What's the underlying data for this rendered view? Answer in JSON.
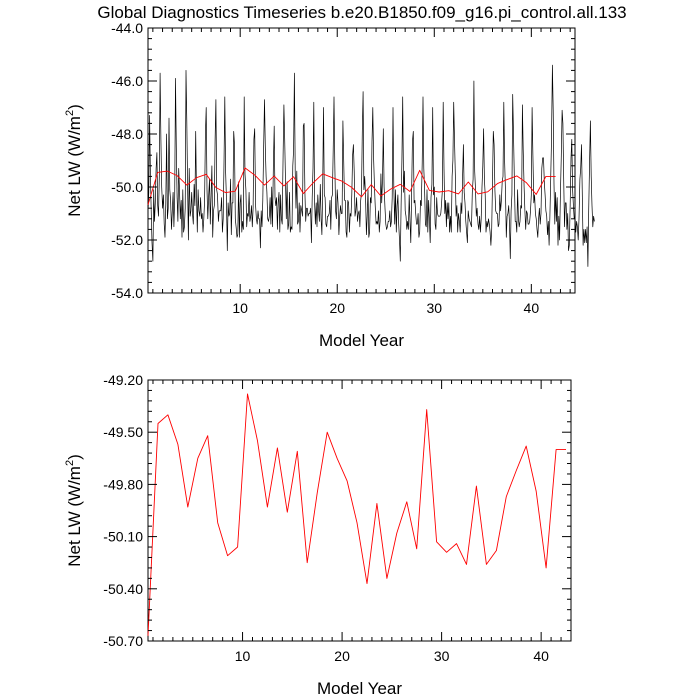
{
  "title": "Global Diagnostics Timeseries b.e20.B1850.f09_g16.pi_control.all.133",
  "colors": {
    "monthly": "#000000",
    "annual": "#ff0000",
    "frame": "#000000",
    "background": "#ffffff"
  },
  "chart_data": [
    {
      "type": "line",
      "title": "Global Diagnostics Timeseries b.e20.B1850.f09_g16.pi_control.all.133",
      "xlabel": "Model Year",
      "ylabel": "Net LW (W/m²)",
      "ylabel_main": "Net LW (W/m",
      "ylabel_sup": "2",
      "ylabel_close": ")",
      "xlim": [
        0.5,
        44.5
      ],
      "ylim": [
        -54.0,
        -44.0
      ],
      "xticks": [
        10,
        20,
        30,
        40
      ],
      "xtick_labels": [
        "10",
        "20",
        "30",
        "40"
      ],
      "yticks": [
        -54,
        -52,
        -50,
        -48,
        -46,
        -44
      ],
      "ytick_labels": [
        "-54.0",
        "-52.0",
        "-50.0",
        "-48.0",
        "-46.0",
        "-44.0"
      ],
      "grid": false,
      "series": [
        {
          "color": "#000000",
          "x_start": 0.5,
          "x_step": 0.08333333,
          "values": [
            -51.0,
            -50.2,
            -47.3,
            -49.5,
            -50.9,
            -52.1,
            -52.8,
            -50.1,
            -51.3,
            -50.6,
            -49.3,
            -48.7,
            -50.7,
            -51.1,
            -49.6,
            -45.7,
            -48.2,
            -50.0,
            -50.8,
            -50.3,
            -51.4,
            -51.9,
            -50.6,
            -48.0,
            -51.2,
            -50.8,
            -47.4,
            -50.1,
            -50.5,
            -51.6,
            -50.9,
            -50.2,
            -51.5,
            -50.4,
            -45.9,
            -48.5,
            -50.4,
            -51.3,
            -49.3,
            -50.1,
            -51.2,
            -50.5,
            -51.9,
            -50.1,
            -51.7,
            -51.5,
            -50.8,
            -45.6,
            -47.5,
            -50.0,
            -52.0,
            -49.3,
            -51.1,
            -50.9,
            -50.2,
            -51.0,
            -51.4,
            -49.9,
            -50.7,
            -47.9,
            -50.3,
            -51.7,
            -50.1,
            -50.9,
            -51.1,
            -50.4,
            -51.2,
            -51.0,
            -51.7,
            -51.2,
            -50.5,
            -48.0,
            -47.0,
            -50.1,
            -51.2,
            -50.3,
            -49.7,
            -51.4,
            -50.3,
            -49.2,
            -51.9,
            -50.9,
            -50.7,
            -48.2,
            -46.7,
            -50.1,
            -50.3,
            -51.3,
            -50.9,
            -50.9,
            -50.9,
            -50.4,
            -51.7,
            -51.2,
            -49.1,
            -46.6,
            -49.4,
            -50.4,
            -52.4,
            -50.6,
            -51.1,
            -51.0,
            -49.7,
            -51.8,
            -50.6,
            -50.6,
            -47.9,
            -48.4,
            -51.2,
            -51.5,
            -51.9,
            -51.8,
            -49.8,
            -51.9,
            -50.6,
            -50.3,
            -51.7,
            -51.3,
            -51.6,
            -46.6,
            -49.5,
            -50.1,
            -51.5,
            -51.0,
            -51.1,
            -50.2,
            -51.3,
            -51.1,
            -50.7,
            -51.5,
            -50.8,
            -48.2,
            -47.8,
            -50.7,
            -51.2,
            -51.4,
            -50.9,
            -51.2,
            -51.2,
            -52.3,
            -50.9,
            -51.5,
            -50.5,
            -48.6,
            -46.7,
            -48.5,
            -49.6,
            -50.2,
            -51.2,
            -51.3,
            -51.1,
            -50.4,
            -51.4,
            -50.0,
            -51.5,
            -49.1,
            -47.7,
            -50.4,
            -50.7,
            -50.4,
            -51.6,
            -50.6,
            -50.2,
            -51.7,
            -50.3,
            -51.2,
            -51.4,
            -48.8,
            -46.9,
            -48.2,
            -49.8,
            -51.2,
            -49.8,
            -51.6,
            -51.4,
            -50.2,
            -51.7,
            -51.5,
            -51.6,
            -49.2,
            -48.6,
            -45.7,
            -49.4,
            -50.8,
            -49.4,
            -51.4,
            -51.3,
            -50.6,
            -51.7,
            -50.7,
            -50.9,
            -51.1,
            -47.7,
            -47.6,
            -50.2,
            -51.3,
            -50.8,
            -50.8,
            -51.1,
            -51.0,
            -51.0,
            -50.8,
            -52.1,
            -50.4,
            -49.3,
            -46.8,
            -50.6,
            -51.4,
            -50.6,
            -51.5,
            -50.3,
            -50.9,
            -51.3,
            -49.9,
            -51.2,
            -51.8,
            -50.0,
            -47.0,
            -50.3,
            -50.4,
            -51.4,
            -51.5,
            -51.1,
            -51.1,
            -51.0,
            -50.5,
            -51.6,
            -50.4,
            -50.3,
            -48.6,
            -46.6,
            -49.1,
            -50.9,
            -51.2,
            -50.1,
            -50.6,
            -51.8,
            -51.1,
            -50.7,
            -51.0,
            -51.0,
            -47.5,
            -49.0,
            -50.5,
            -50.5,
            -51.7,
            -51.9,
            -50.5,
            -50.6,
            -51.7,
            -51.0,
            -51.1,
            -50.3,
            -48.8,
            -48.4,
            -49.4,
            -51.1,
            -50.9,
            -50.4,
            -51.3,
            -51.0,
            -50.9,
            -51.5,
            -50.5,
            -50.2,
            -47.9,
            -46.4,
            -50.1,
            -49.6,
            -50.3,
            -51.8,
            -51.1,
            -50.1,
            -51.9,
            -51.7,
            -50.4,
            -50.6,
            -48.3,
            -47.0,
            -48.9,
            -49.9,
            -50.7,
            -51.4,
            -51.3,
            -51.4,
            -50.9,
            -51.7,
            -51.3,
            -49.5,
            -50.6,
            -49.7,
            -47.8,
            -50.0,
            -50.8,
            -51.4,
            -51.6,
            -51.5,
            -51.3,
            -51.3,
            -50.9,
            -51.5,
            -51.3,
            -50.4,
            -47.0,
            -50.0,
            -51.4,
            -50.1,
            -51.7,
            -50.7,
            -50.3,
            -51.4,
            -52.0,
            -52.8,
            -50.7,
            -49.0,
            -46.6,
            -50.2,
            -49.4,
            -50.9,
            -51.1,
            -51.6,
            -51.3,
            -51.6,
            -50.3,
            -51.3,
            -52.1,
            -50.3,
            -48.3,
            -47.9,
            -50.6,
            -50.5,
            -51.0,
            -51.4,
            -51.4,
            -51.0,
            -51.9,
            -51.7,
            -50.5,
            -50.7,
            -49.1,
            -46.6,
            -49.3,
            -50.1,
            -51.4,
            -51.5,
            -50.1,
            -51.7,
            -50.5,
            -51.2,
            -52.1,
            -50.4,
            -49.9,
            -47.0,
            -50.3,
            -50.0,
            -51.4,
            -51.6,
            -50.4,
            -51.0,
            -51.1,
            -51.1,
            -51.1,
            -51.0,
            -50.6,
            -50.1,
            -46.8,
            -49.3,
            -51.0,
            -50.5,
            -51.5,
            -50.6,
            -51.2,
            -50.6,
            -51.7,
            -51.1,
            -51.7,
            -49.6,
            -49.0,
            -46.8,
            -48.2,
            -49.5,
            -51.1,
            -50.7,
            -51.7,
            -51.0,
            -51.3,
            -51.7,
            -50.6,
            -51.0,
            -49.6,
            -48.4,
            -50.2,
            -50.6,
            -51.3,
            -51.7,
            -52.1,
            -50.9,
            -51.2,
            -51.3,
            -51.4,
            -51.5,
            -50.2,
            -49.7,
            -46.0,
            -49.4,
            -50.1,
            -51.1,
            -50.8,
            -51.4,
            -51.6,
            -51.1,
            -51.7,
            -51.2,
            -50.0,
            -49.2,
            -47.8,
            -49.7,
            -50.3,
            -51.7,
            -51.3,
            -51.5,
            -51.2,
            -51.4,
            -51.7,
            -52.2,
            -51.6,
            -49.8,
            -47.9,
            -48.4,
            -50.1,
            -50.9,
            -51.0,
            -51.0,
            -51.5,
            -51.4,
            -50.3,
            -50.9,
            -50.5,
            -49.8,
            -49.6,
            -46.8,
            -49.0,
            -50.2,
            -51.9,
            -51.1,
            -51.0,
            -50.7,
            -51.4,
            -52.7,
            -50.9,
            -50.3,
            -46.5,
            -48.0,
            -49.6,
            -51.3,
            -51.3,
            -51.7,
            -50.1,
            -51.2,
            -51.5,
            -51.3,
            -50.7,
            -50.8,
            -46.9,
            -48.6,
            -50.0,
            -50.9,
            -51.6,
            -50.9,
            -51.0,
            -51.4,
            -51.4,
            -51.3,
            -50.9,
            -50.3,
            -47.0,
            -48.8,
            -50.6,
            -50.3,
            -51.0,
            -51.2,
            -51.6,
            -51.9,
            -51.2,
            -50.8,
            -51.4,
            -51.0,
            -49.3,
            -48.9,
            -48.9,
            -49.8,
            -50.3,
            -50.9,
            -51.1,
            -51.8,
            -51.3,
            -52.2,
            -51.1,
            -49.7,
            -48.2,
            -45.4,
            -47.1,
            -49.9,
            -51.4,
            -50.2,
            -51.3,
            -50.4,
            -52.2,
            -51.1,
            -52.0,
            -50.3,
            -48.8,
            -47.1,
            -47.6,
            -49.7,
            -51.5,
            -50.6,
            -50.6,
            -51.6,
            -51.0,
            -52.4,
            -52.2,
            -50.8,
            -48.9,
            -48.2,
            -50.1,
            -50.7,
            -51.2,
            -51.1,
            -51.7,
            -51.3,
            -51.5,
            -52.0,
            -51.2,
            -49.7,
            -49.3,
            -48.4,
            -50.3,
            -52.2,
            -51.6,
            -52.1,
            -51.6,
            -52.1,
            -51.5,
            -53.0,
            -50.9,
            -49.0,
            -47.5,
            -49.6,
            -50.7,
            -51.5,
            -51.1,
            -51.3
          ]
        },
        {
          "color": "#ff0000",
          "x": [
            0.5,
            1.5,
            2.5,
            3.5,
            4.5,
            5.5,
            6.5,
            7.5,
            8.5,
            9.5,
            10.5,
            11.5,
            12.5,
            13.5,
            14.5,
            15.5,
            16.5,
            17.5,
            18.5,
            19.5,
            20.5,
            21.5,
            22.5,
            23.5,
            24.5,
            25.5,
            26.5,
            27.5,
            28.5,
            29.5,
            30.5,
            31.5,
            32.5,
            33.5,
            34.5,
            35.5,
            36.5,
            37.5,
            38.5,
            39.5,
            40.5,
            41.5,
            42.5
          ],
          "values": [
            -50.67,
            -49.45,
            -49.4,
            -49.57,
            -49.93,
            -49.65,
            -49.52,
            -50.02,
            -50.21,
            -50.16,
            -49.28,
            -49.55,
            -49.93,
            -49.59,
            -49.96,
            -49.61,
            -50.25,
            -49.85,
            -49.5,
            -49.65,
            -49.78,
            -50.02,
            -50.37,
            -49.91,
            -50.34,
            -50.08,
            -49.9,
            -50.17,
            -49.37,
            -50.13,
            -50.19,
            -50.14,
            -50.26,
            -49.81,
            -50.26,
            -50.18,
            -49.87,
            -49.72,
            -49.58,
            -49.84,
            -50.28,
            -49.6,
            -49.6
          ]
        }
      ]
    },
    {
      "type": "line",
      "title": "",
      "xlabel": "Model Year",
      "ylabel": "Net LW (W/m²)",
      "ylabel_main": "Net LW (W/m",
      "ylabel_sup": "2",
      "ylabel_close": ")",
      "xlim": [
        0.5,
        43.0
      ],
      "ylim": [
        -50.7,
        -49.2
      ],
      "xticks": [
        10,
        20,
        30,
        40
      ],
      "xtick_labels": [
        "10",
        "20",
        "30",
        "40"
      ],
      "yticks": [
        -50.7,
        -50.4,
        -50.1,
        -49.8,
        -49.5,
        -49.2
      ],
      "ytick_labels": [
        "-50.70",
        "-50.40",
        "-50.10",
        "-49.80",
        "-49.50",
        "-49.20"
      ],
      "grid": false,
      "series": [
        {
          "color": "#ff0000",
          "x": [
            0.5,
            1.5,
            2.5,
            3.5,
            4.5,
            5.5,
            6.5,
            7.5,
            8.5,
            9.5,
            10.5,
            11.5,
            12.5,
            13.5,
            14.5,
            15.5,
            16.5,
            17.5,
            18.5,
            19.5,
            20.5,
            21.5,
            22.5,
            23.5,
            24.5,
            25.5,
            26.5,
            27.5,
            28.5,
            29.5,
            30.5,
            31.5,
            32.5,
            33.5,
            34.5,
            35.5,
            36.5,
            37.5,
            38.5,
            39.5,
            40.5,
            41.5,
            42.5
          ],
          "values": [
            -50.67,
            -49.45,
            -49.4,
            -49.57,
            -49.93,
            -49.65,
            -49.52,
            -50.02,
            -50.21,
            -50.16,
            -49.28,
            -49.55,
            -49.93,
            -49.59,
            -49.96,
            -49.61,
            -50.25,
            -49.85,
            -49.5,
            -49.65,
            -49.78,
            -50.02,
            -50.37,
            -49.91,
            -50.34,
            -50.08,
            -49.9,
            -50.17,
            -49.37,
            -50.13,
            -50.19,
            -50.14,
            -50.26,
            -49.81,
            -50.26,
            -50.18,
            -49.87,
            -49.72,
            -49.58,
            -49.84,
            -50.28,
            -49.6,
            -49.6
          ]
        }
      ]
    }
  ]
}
